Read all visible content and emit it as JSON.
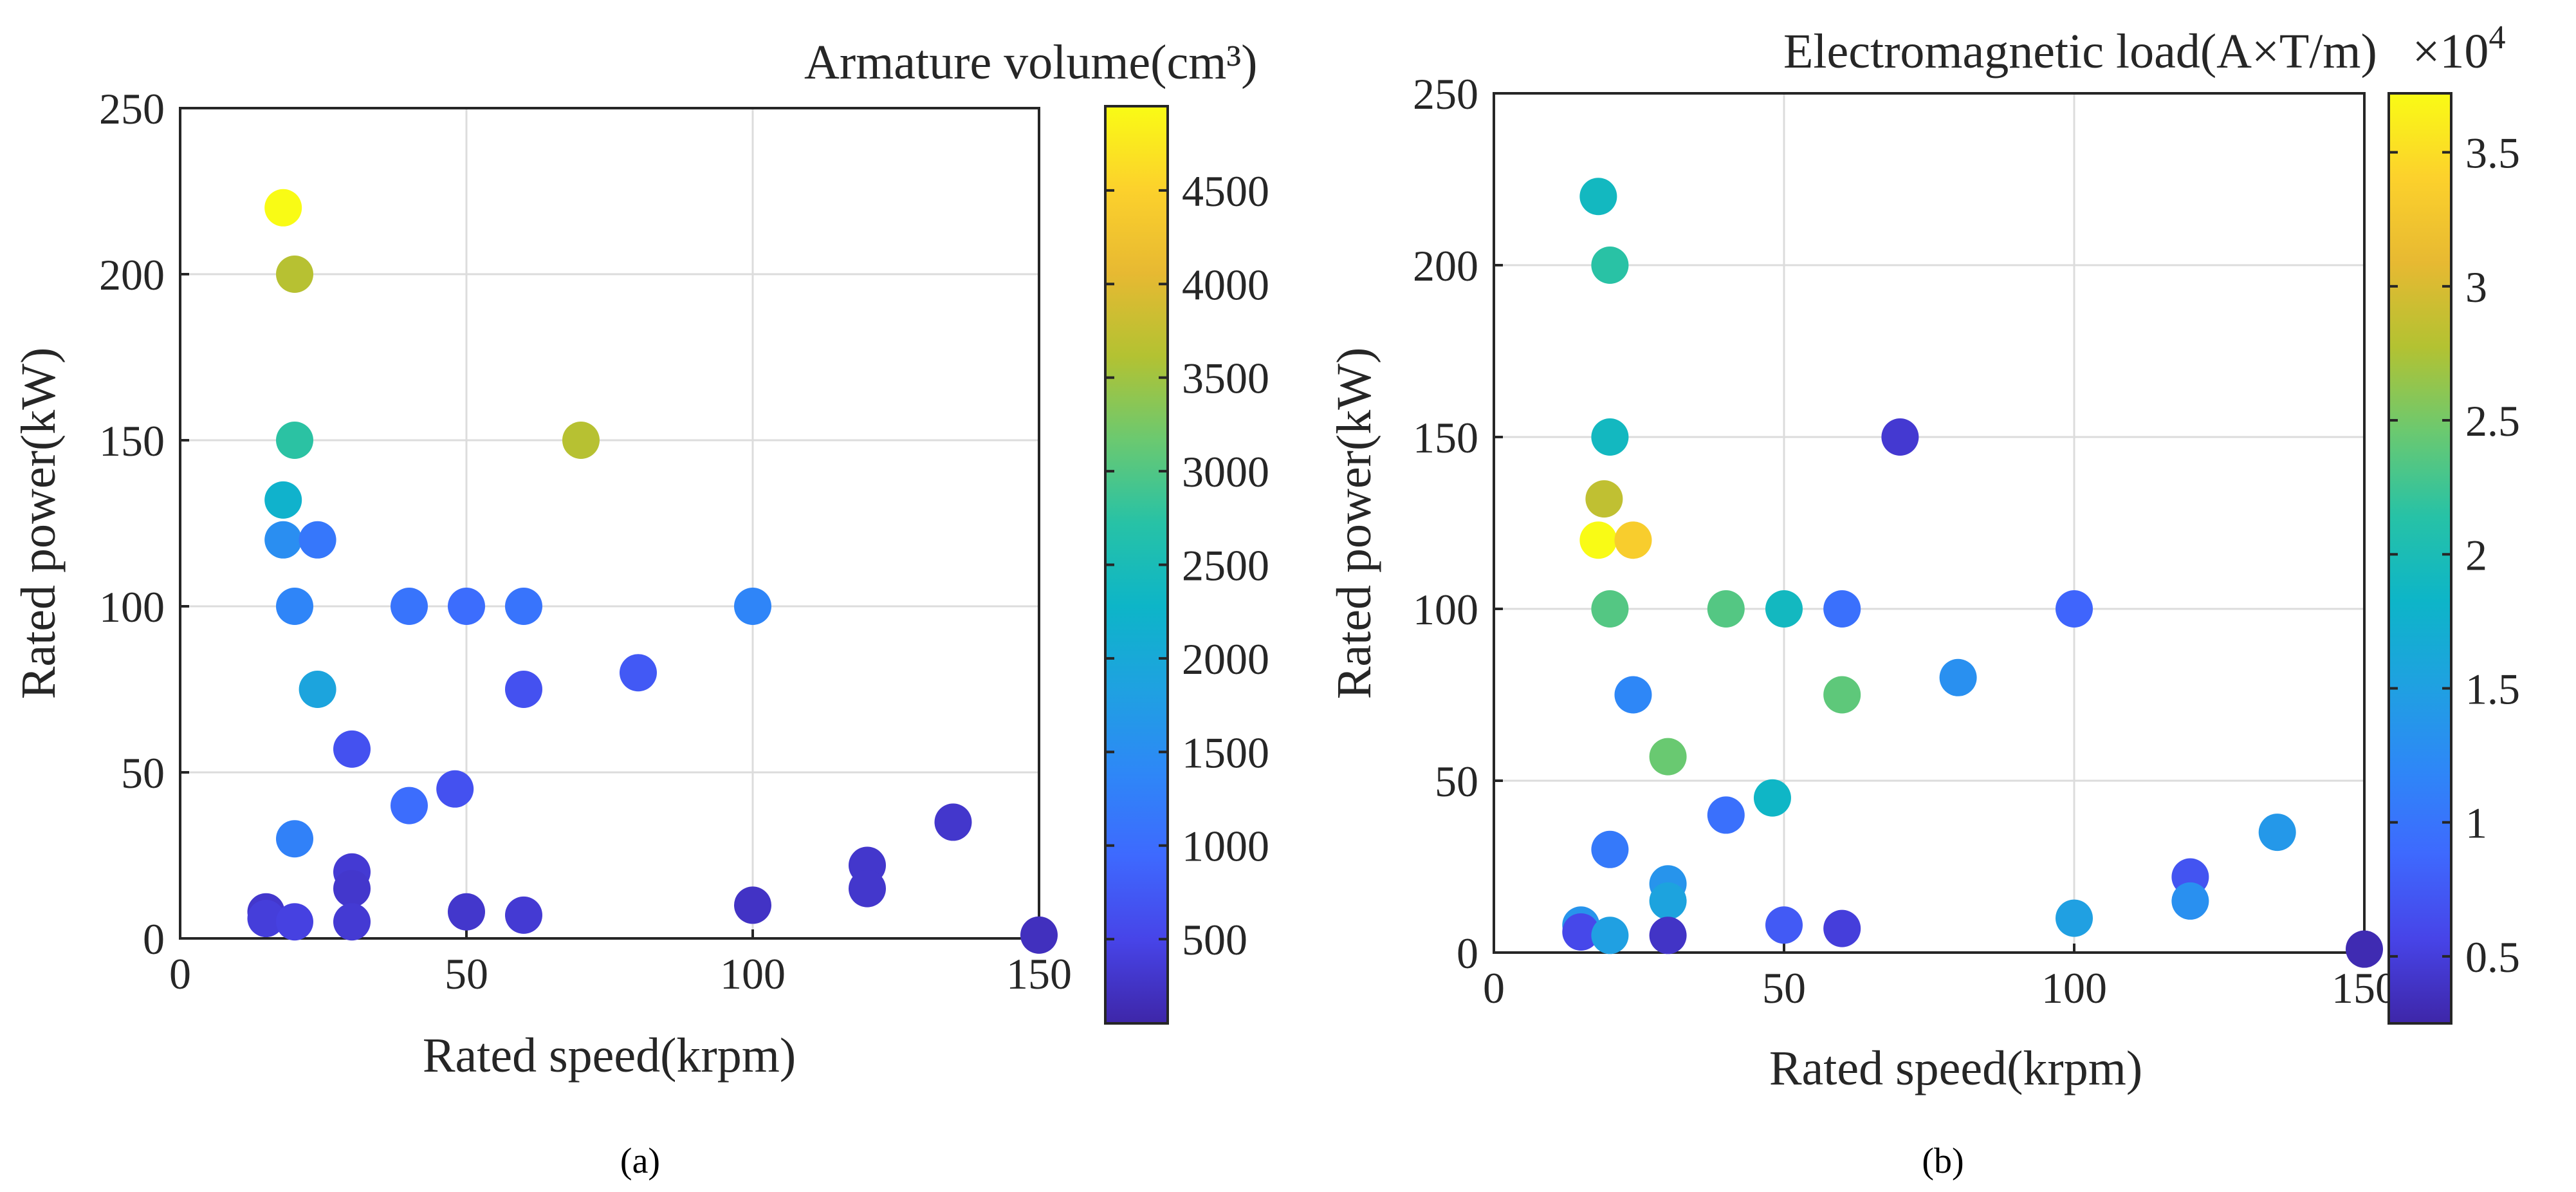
{
  "colormap": [
    "#3e26a8",
    "#4744e8",
    "#3e69fe",
    "#2e87f7",
    "#1fa1e1",
    "#0db5c8",
    "#27c2a6",
    "#6bc970",
    "#b3c232",
    "#e7b932",
    "#fcd12c",
    "#f9fb15"
  ],
  "colors": {
    "grid": "#dcdcdc",
    "axis": "#262626",
    "background": "#ffffff"
  },
  "chart_data": [
    {
      "type": "scatter",
      "panel": "(a)",
      "xlabel": "Rated speed(krpm)",
      "ylabel": "Rated power(kW)",
      "xlim": [
        0,
        150
      ],
      "ylim": [
        0,
        250
      ],
      "xticks": [
        0,
        50,
        100,
        150
      ],
      "yticks": [
        0,
        50,
        100,
        150,
        200,
        250
      ],
      "grid": true,
      "colorbar": {
        "title": "Armature volume(cm³)",
        "range": [
          50,
          4950
        ],
        "ticks": [
          500,
          1000,
          1500,
          2000,
          2500,
          3000,
          3500,
          4000,
          4500
        ]
      },
      "points": [
        {
          "x": 18,
          "y": 220,
          "c": 4950
        },
        {
          "x": 20,
          "y": 200,
          "c": 3650
        },
        {
          "x": 20,
          "y": 150,
          "c": 2750
        },
        {
          "x": 70,
          "y": 150,
          "c": 3650
        },
        {
          "x": 18,
          "y": 132,
          "c": 2200
        },
        {
          "x": 18,
          "y": 120,
          "c": 1500
        },
        {
          "x": 24,
          "y": 120,
          "c": 1150
        },
        {
          "x": 20,
          "y": 100,
          "c": 1350
        },
        {
          "x": 40,
          "y": 100,
          "c": 1100
        },
        {
          "x": 50,
          "y": 100,
          "c": 1000
        },
        {
          "x": 60,
          "y": 100,
          "c": 1100
        },
        {
          "x": 100,
          "y": 100,
          "c": 1350
        },
        {
          "x": 24,
          "y": 75,
          "c": 1900
        },
        {
          "x": 60,
          "y": 75,
          "c": 650
        },
        {
          "x": 80,
          "y": 80,
          "c": 750
        },
        {
          "x": 30,
          "y": 57,
          "c": 650
        },
        {
          "x": 40,
          "y": 40,
          "c": 1000
        },
        {
          "x": 48,
          "y": 45,
          "c": 650
        },
        {
          "x": 20,
          "y": 30,
          "c": 1300
        },
        {
          "x": 30,
          "y": 20,
          "c": 350
        },
        {
          "x": 30,
          "y": 15,
          "c": 300
        },
        {
          "x": 15,
          "y": 8,
          "c": 300
        },
        {
          "x": 15,
          "y": 6,
          "c": 400
        },
        {
          "x": 20,
          "y": 5,
          "c": 450
        },
        {
          "x": 30,
          "y": 5,
          "c": 350
        },
        {
          "x": 50,
          "y": 8,
          "c": 300
        },
        {
          "x": 60,
          "y": 7,
          "c": 350
        },
        {
          "x": 100,
          "y": 10,
          "c": 250
        },
        {
          "x": 120,
          "y": 22,
          "c": 300
        },
        {
          "x": 120,
          "y": 15,
          "c": 300
        },
        {
          "x": 135,
          "y": 35,
          "c": 300
        },
        {
          "x": 150,
          "y": 1,
          "c": 200
        }
      ]
    },
    {
      "type": "scatter",
      "panel": "(b)",
      "xlabel": "Rated speed(krpm)",
      "ylabel": "Rated power(kW)",
      "xlim": [
        0,
        150
      ],
      "ylim": [
        0,
        250
      ],
      "xticks": [
        0,
        50,
        100,
        150
      ],
      "yticks": [
        0,
        50,
        100,
        150,
        200,
        250
      ],
      "grid": true,
      "colorbar": {
        "title": "Electromagnetic load(A×T/m)",
        "exponent_base": "×10",
        "exponent": "4",
        "range": [
          0.25,
          3.72
        ],
        "ticks": [
          0.5,
          1,
          1.5,
          2,
          2.5,
          3,
          3.5
        ],
        "ticklabels": [
          "0.5",
          "1",
          "1.5",
          "2",
          "2.5",
          "3",
          "3.5"
        ]
      },
      "points": [
        {
          "x": 18,
          "y": 220,
          "c": 1.9
        },
        {
          "x": 20,
          "y": 200,
          "c": 2.15
        },
        {
          "x": 20,
          "y": 150,
          "c": 1.9
        },
        {
          "x": 70,
          "y": 150,
          "c": 0.45
        },
        {
          "x": 19,
          "y": 132,
          "c": 2.85
        },
        {
          "x": 18,
          "y": 120,
          "c": 3.72
        },
        {
          "x": 24,
          "y": 120,
          "c": 3.35
        },
        {
          "x": 20,
          "y": 100,
          "c": 2.35
        },
        {
          "x": 40,
          "y": 100,
          "c": 2.35
        },
        {
          "x": 50,
          "y": 100,
          "c": 1.9
        },
        {
          "x": 60,
          "y": 100,
          "c": 0.95
        },
        {
          "x": 100,
          "y": 100,
          "c": 0.85
        },
        {
          "x": 24,
          "y": 75,
          "c": 1.2
        },
        {
          "x": 60,
          "y": 75,
          "c": 2.4
        },
        {
          "x": 80,
          "y": 80,
          "c": 1.3
        },
        {
          "x": 30,
          "y": 57,
          "c": 2.45
        },
        {
          "x": 40,
          "y": 40,
          "c": 0.95
        },
        {
          "x": 48,
          "y": 45,
          "c": 1.85
        },
        {
          "x": 20,
          "y": 30,
          "c": 1.05
        },
        {
          "x": 30,
          "y": 20,
          "c": 1.35
        },
        {
          "x": 30,
          "y": 15,
          "c": 1.55
        },
        {
          "x": 15,
          "y": 8,
          "c": 1.35
        },
        {
          "x": 15,
          "y": 6,
          "c": 0.6
        },
        {
          "x": 20,
          "y": 5,
          "c": 1.5
        },
        {
          "x": 30,
          "y": 5,
          "c": 0.4
        },
        {
          "x": 50,
          "y": 8,
          "c": 0.75
        },
        {
          "x": 60,
          "y": 7,
          "c": 0.5
        },
        {
          "x": 100,
          "y": 10,
          "c": 1.5
        },
        {
          "x": 120,
          "y": 22,
          "c": 0.7
        },
        {
          "x": 120,
          "y": 15,
          "c": 1.3
        },
        {
          "x": 135,
          "y": 35,
          "c": 1.4
        },
        {
          "x": 150,
          "y": 1,
          "c": 0.3
        }
      ]
    }
  ]
}
